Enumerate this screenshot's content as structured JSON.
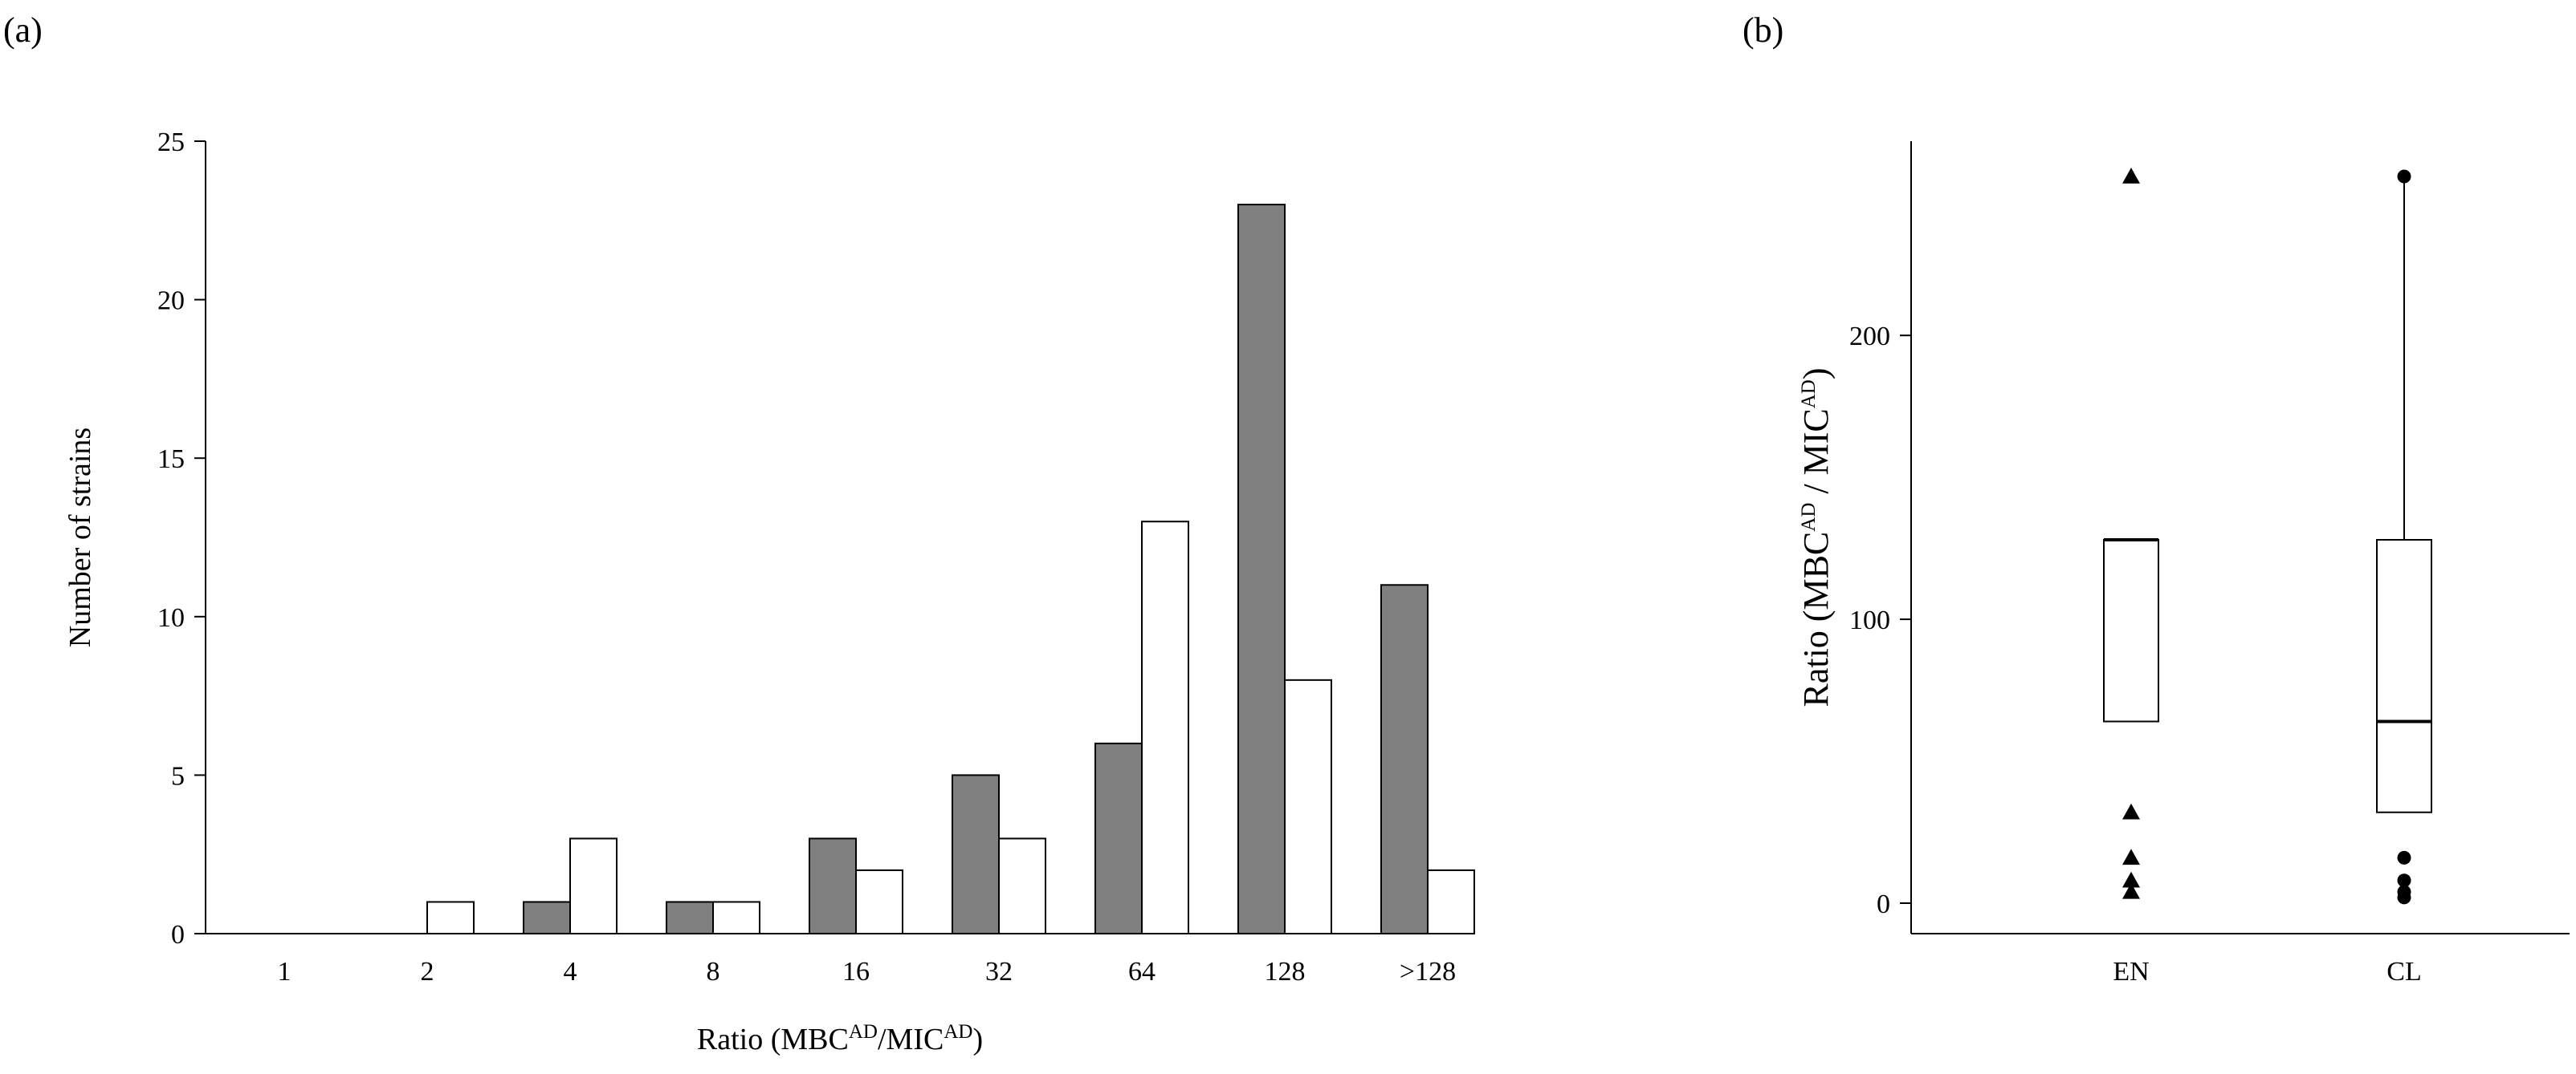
{
  "panels": {
    "a": {
      "label": "(a)"
    },
    "b": {
      "label": "(b)"
    }
  },
  "colors": {
    "series_dark": "#808080",
    "series_light": "#ffffff",
    "stroke": "#000000"
  },
  "chart_data": [
    {
      "type": "bar",
      "panel": "(a)",
      "categories": [
        "1",
        "2",
        "4",
        "8",
        "16",
        "32",
        "64",
        "128",
        ">128"
      ],
      "series": [
        {
          "values": [
            0,
            0,
            1,
            1,
            3,
            5,
            6,
            23,
            11
          ],
          "color": "#808080"
        },
        {
          "values": [
            0,
            1,
            3,
            1,
            2,
            3,
            13,
            8,
            2
          ],
          "color": "#ffffff"
        }
      ],
      "ylabel": "Number of strains",
      "xlabel": {
        "main": "Ratio (MBC",
        "sup1": "AD",
        "mid": "/MIC",
        "sup2": "AD",
        "end": ")"
      },
      "ylim": [
        0,
        25
      ],
      "yticks": [
        "0",
        "5",
        "10",
        "15",
        "20",
        "25"
      ],
      "grid": false,
      "legend": "none"
    },
    {
      "type": "box",
      "panel": "(b)",
      "categories": [
        "EN",
        "CL"
      ],
      "boxes": [
        {
          "name": "EN",
          "whisker_low": 64,
          "q1": 64,
          "median": 128,
          "q3": 128,
          "whisker_high": 128,
          "outliers": [
            256,
            32,
            16,
            8,
            4
          ],
          "marker": "triangle"
        },
        {
          "name": "CL",
          "whisker_low": 32,
          "q1": 32,
          "median": 64,
          "q3": 128,
          "whisker_high": 256,
          "outliers": [
            256,
            16,
            8,
            4,
            2
          ],
          "marker": "circle"
        }
      ],
      "ylabel": {
        "main": "Ratio (MBC",
        "sup1": "AD",
        "mid": " / MIC",
        "sup2": "AD",
        "end": ")"
      },
      "ylim": [
        0,
        256
      ],
      "yticks": [
        "0",
        "100",
        "200"
      ],
      "grid": false,
      "legend": "none"
    }
  ]
}
